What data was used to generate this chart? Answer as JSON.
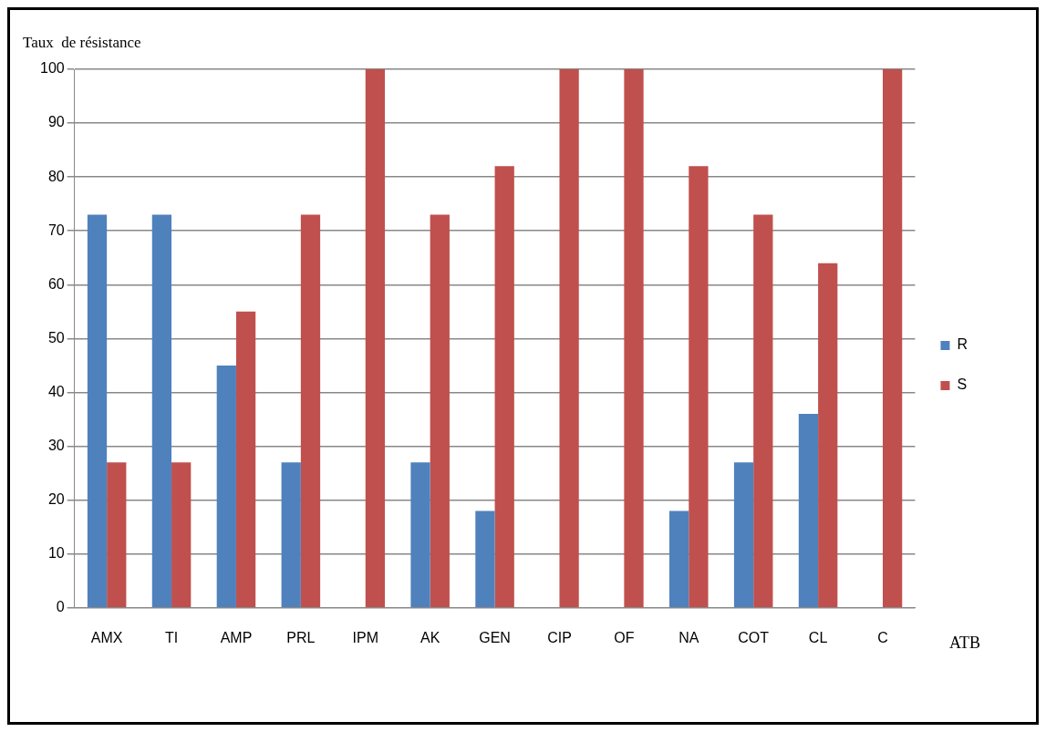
{
  "chart_data": {
    "type": "bar",
    "ylabel": "Taux  de résistance",
    "xlabel": "ATB",
    "categories": [
      "AMX",
      "TI",
      "AMP",
      "PRL",
      "IPM",
      "AK",
      "GEN",
      "CIP",
      "OF",
      "NA",
      "COT",
      "CL",
      "C"
    ],
    "series": [
      {
        "name": "R",
        "color": "#4f81bd",
        "values": [
          73,
          73,
          45,
          27,
          0,
          27,
          18,
          0,
          0,
          18,
          27,
          36,
          0
        ]
      },
      {
        "name": "S",
        "color": "#c0504d",
        "values": [
          27,
          27,
          55,
          73,
          100,
          73,
          82,
          100,
          100,
          82,
          73,
          64,
          100
        ]
      }
    ],
    "ylim": [
      0,
      100
    ],
    "yticks": [
      0,
      10,
      20,
      30,
      40,
      50,
      60,
      70,
      80,
      90,
      100
    ],
    "grid": "y",
    "legend": "right"
  }
}
